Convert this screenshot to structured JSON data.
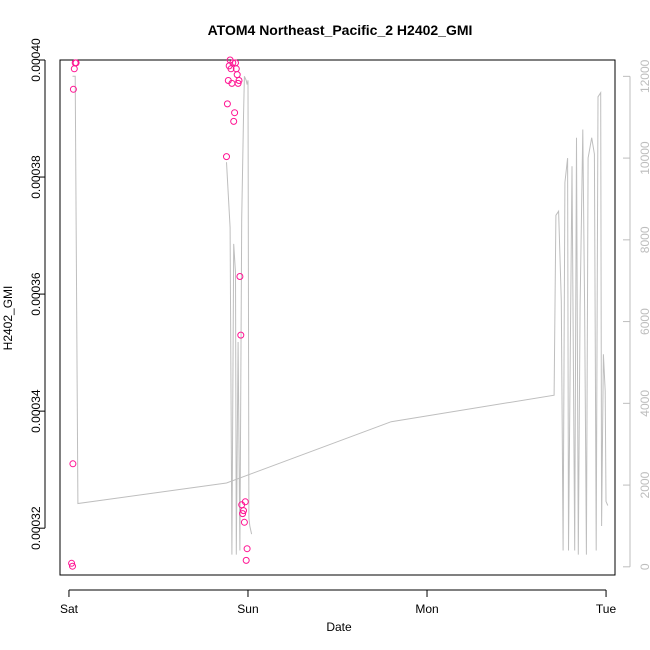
{
  "chart_data": {
    "type": "scatter",
    "title": "ATOM4 Northeast_Pacific_2 H2402_GMI",
    "xlabel": "Date",
    "ylabel": "H2402_GMI",
    "x_unit": "days",
    "xlim": [
      -0.05,
      3.05
    ],
    "x_ticks": [
      {
        "value": 0,
        "label": "Sat"
      },
      {
        "value": 1,
        "label": "Sun"
      },
      {
        "value": 2,
        "label": "Mon"
      },
      {
        "value": 3,
        "label": "Tue"
      }
    ],
    "ylim": [
      0.000312,
      0.0004
    ],
    "y_ticks": [
      {
        "value": 0.00032,
        "label": "0.00032"
      },
      {
        "value": 0.00034,
        "label": "0.00034"
      },
      {
        "value": 0.00036,
        "label": "0.00036"
      },
      {
        "value": 0.00038,
        "label": "0.00038"
      },
      {
        "value": 0.0004,
        "label": "0.00040"
      }
    ],
    "y2lim": [
      -200,
      12400
    ],
    "y2_ticks": [
      {
        "value": 0,
        "label": "0"
      },
      {
        "value": 2000,
        "label": "2000"
      },
      {
        "value": 4000,
        "label": "4000"
      },
      {
        "value": 6000,
        "label": "6000"
      },
      {
        "value": 8000,
        "label": "8000"
      },
      {
        "value": 10000,
        "label": "10000"
      },
      {
        "value": 12000,
        "label": "12000"
      }
    ],
    "colors": {
      "points": "#ff1493",
      "line": "#bebebe",
      "axis_right": "#bdbdbd"
    },
    "series": [
      {
        "type": "line",
        "axis": "right",
        "points": [
          [
            0.02,
            12000
          ],
          [
            0.035,
            12000
          ],
          [
            0.05,
            1550
          ],
          [
            0.88,
            2050
          ],
          [
            1.8,
            3550
          ],
          [
            2.71,
            4200
          ],
          [
            2.72,
            8600
          ],
          [
            2.735,
            8700
          ],
          [
            2.75,
            6500
          ],
          [
            2.76,
            400
          ],
          [
            2.77,
            9400
          ],
          [
            2.785,
            10000
          ],
          [
            2.79,
            400
          ],
          [
            2.8,
            5000
          ],
          [
            2.81,
            9800
          ],
          [
            2.825,
            400
          ],
          [
            2.835,
            10500
          ],
          [
            2.845,
            300
          ],
          [
            2.855,
            6400
          ],
          [
            2.87,
            10700
          ],
          [
            2.88,
            6400
          ],
          [
            2.89,
            300
          ],
          [
            2.9,
            10000
          ],
          [
            2.92,
            10500
          ],
          [
            2.935,
            10100
          ],
          [
            2.945,
            400
          ],
          [
            2.955,
            11500
          ],
          [
            2.97,
            11600
          ],
          [
            2.975,
            1000
          ],
          [
            2.985,
            5200
          ],
          [
            2.995,
            4300
          ],
          [
            3.0,
            1600
          ],
          [
            3.01,
            1500
          ]
        ]
      },
      {
        "type": "line",
        "axis": "right",
        "points": [
          [
            0.88,
            9900
          ],
          [
            0.9,
            8300
          ],
          [
            0.91,
            300
          ],
          [
            0.92,
            7900
          ],
          [
            0.93,
            7200
          ],
          [
            0.935,
            300
          ],
          [
            0.945,
            5500
          ],
          [
            0.955,
            400
          ],
          [
            0.965,
            8500
          ],
          [
            0.975,
            11000
          ],
          [
            0.98,
            12000
          ],
          [
            0.99,
            11900
          ],
          [
            0.995,
            11800
          ],
          [
            1.0,
            11900
          ],
          [
            1.005,
            1200
          ],
          [
            1.01,
            1000
          ],
          [
            1.02,
            800
          ]
        ]
      },
      {
        "type": "scatter",
        "axis": "left",
        "points": [
          [
            0.015,
            0.000314
          ],
          [
            0.02,
            0.0003135
          ],
          [
            0.022,
            0.000331
          ],
          [
            0.025,
            0.000395
          ],
          [
            0.03,
            0.0003985
          ],
          [
            0.035,
            0.0003995
          ],
          [
            0.04,
            0.0003995
          ],
          [
            0.88,
            0.0003835
          ],
          [
            0.885,
            0.0003925
          ],
          [
            0.89,
            0.0003965
          ],
          [
            0.895,
            0.000399
          ],
          [
            0.9,
            0.0004
          ],
          [
            0.905,
            0.0003985
          ],
          [
            0.91,
            0.000396
          ],
          [
            0.915,
            0.0003995
          ],
          [
            0.92,
            0.0003895
          ],
          [
            0.925,
            0.000391
          ],
          [
            0.93,
            0.0003995
          ],
          [
            0.935,
            0.0003985
          ],
          [
            0.94,
            0.0003975
          ],
          [
            0.945,
            0.000396
          ],
          [
            0.95,
            0.0003965
          ],
          [
            0.955,
            0.000363
          ],
          [
            0.96,
            0.000353
          ],
          [
            0.965,
            0.000324
          ],
          [
            0.97,
            0.0003225
          ],
          [
            0.975,
            0.000323
          ],
          [
            0.98,
            0.000321
          ],
          [
            0.985,
            0.0003245
          ],
          [
            0.99,
            0.0003145
          ],
          [
            0.995,
            0.0003165
          ]
        ]
      }
    ],
    "grid": false,
    "legend": false
  }
}
